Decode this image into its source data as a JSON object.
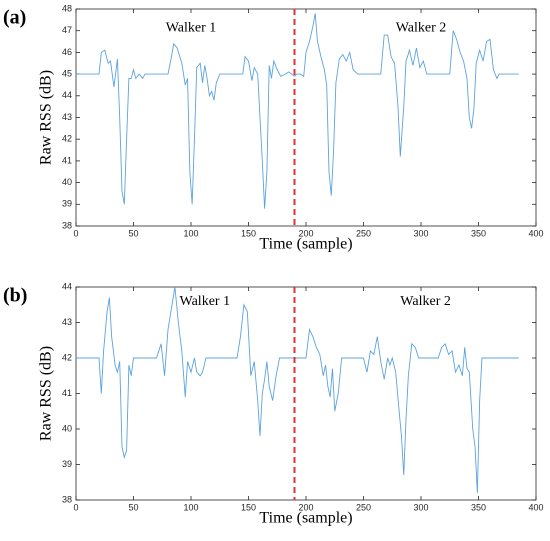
{
  "chart_data": [
    {
      "type": "line",
      "panel_label": "(a)",
      "xlabel": "Time (sample)",
      "ylabel": "Raw RSS (dB)",
      "annotations": [
        "Walker 1",
        "Walker 2"
      ],
      "divider_x": 190,
      "divider_color": "#e03030",
      "xlim": [
        0,
        400
      ],
      "xticks": [
        0,
        50,
        100,
        150,
        200,
        250,
        300,
        350,
        400
      ],
      "ylim": [
        38,
        48
      ],
      "yticks": [
        38,
        39,
        40,
        41,
        42,
        43,
        44,
        45,
        46,
        47,
        48
      ],
      "x": [
        0,
        20,
        22,
        25,
        28,
        30,
        33,
        36,
        38,
        40,
        42,
        44,
        46,
        48,
        50,
        52,
        55,
        58,
        60,
        80,
        83,
        85,
        88,
        92,
        95,
        97,
        99,
        101,
        103,
        105,
        108,
        110,
        112,
        114,
        116,
        118,
        120,
        122,
        125,
        145,
        147,
        150,
        153,
        155,
        158,
        160,
        162,
        164,
        166,
        168,
        170,
        172,
        175,
        178,
        182,
        185,
        190,
        192,
        195,
        198,
        200,
        203,
        206,
        208,
        210,
        213,
        216,
        218,
        220,
        222,
        224,
        226,
        229,
        232,
        235,
        238,
        241,
        245,
        265,
        268,
        271,
        274,
        277,
        280,
        282,
        285,
        287,
        290,
        293,
        296,
        299,
        302,
        305,
        325,
        328,
        331,
        334,
        337,
        340,
        342,
        344,
        346,
        348,
        351,
        354,
        357,
        360,
        363,
        366,
        368,
        385
      ],
      "series": [
        {
          "name": "Raw RSS",
          "color": "#5ba3dd",
          "values": [
            45,
            45,
            46,
            46.1,
            45.5,
            45.6,
            44.4,
            45.7,
            43,
            39.6,
            39,
            42,
            44.8,
            44.8,
            45.2,
            44.8,
            45,
            44.8,
            45,
            45,
            45.8,
            46.4,
            46.2,
            45.5,
            44.5,
            44.8,
            40.5,
            39,
            42,
            45.3,
            45.5,
            44.6,
            45.4,
            44.8,
            44,
            44.2,
            43.8,
            44.6,
            45,
            45,
            45.8,
            45.6,
            44.7,
            45.3,
            45,
            43,
            41,
            38.8,
            40.5,
            45.4,
            44.8,
            45.6,
            45.2,
            44.9,
            45,
            45.1,
            44.9,
            45,
            45,
            44.9,
            46,
            46.5,
            47.2,
            47.8,
            46.5,
            45.8,
            45.2,
            44.5,
            40.5,
            39.4,
            41.5,
            44.6,
            45.7,
            45.9,
            45.6,
            46,
            45.2,
            45,
            45,
            46.8,
            46.8,
            45.8,
            45.5,
            43.5,
            41.2,
            43.5,
            45.6,
            46.1,
            45.4,
            46.2,
            45.3,
            45.6,
            45,
            45,
            47,
            46.6,
            46,
            45.6,
            44.8,
            43,
            42.5,
            43.4,
            45.5,
            46.1,
            45.6,
            46.5,
            46.6,
            45.2,
            44.8,
            45,
            45
          ]
        }
      ]
    },
    {
      "type": "line",
      "panel_label": "(b)",
      "xlabel": "Time (sample)",
      "ylabel": "Raw RSS (dB)",
      "annotations": [
        "Walker 1",
        "Walker 2"
      ],
      "divider_x": 190,
      "divider_color": "#e03030",
      "xlim": [
        0,
        400
      ],
      "xticks": [
        0,
        50,
        100,
        150,
        200,
        250,
        300,
        350,
        400
      ],
      "ylim": [
        38,
        44
      ],
      "yticks": [
        38,
        39,
        40,
        41,
        42,
        43,
        44
      ],
      "x": [
        0,
        20,
        22,
        24,
        27,
        29,
        31,
        34,
        36,
        38,
        40,
        42,
        44,
        46,
        48,
        50,
        70,
        74,
        77,
        80,
        83,
        86,
        89,
        92,
        95,
        97,
        100,
        103,
        105,
        108,
        110,
        113,
        140,
        143,
        146,
        149,
        152,
        155,
        158,
        160,
        162,
        164,
        166,
        168,
        171,
        174,
        177,
        200,
        203,
        206,
        209,
        212,
        215,
        217,
        219,
        221,
        223,
        225,
        228,
        231,
        250,
        253,
        256,
        259,
        262,
        265,
        268,
        271,
        273,
        275,
        278,
        281,
        283,
        285,
        287,
        289,
        292,
        295,
        298,
        315,
        318,
        321,
        324,
        327,
        330,
        333,
        336,
        338,
        340,
        342,
        345,
        347,
        349,
        351,
        353,
        385
      ],
      "series": [
        {
          "name": "Raw RSS",
          "color": "#5ba3dd",
          "values": [
            42,
            42,
            41,
            42.2,
            43.3,
            43.7,
            42.6,
            41.8,
            41.6,
            41.9,
            39.5,
            39.2,
            39.4,
            41.8,
            41.5,
            42,
            42,
            42.4,
            41.5,
            42.8,
            43.4,
            44,
            43,
            42.2,
            40.9,
            41.9,
            41.6,
            42,
            41.6,
            41.5,
            41.6,
            42,
            42,
            42.6,
            43.5,
            43.3,
            41.5,
            41.9,
            40.8,
            39.8,
            41,
            41.4,
            41.9,
            41.2,
            40.8,
            41.5,
            42,
            42,
            42.8,
            42.6,
            42.3,
            42.1,
            41.5,
            41.8,
            41.2,
            40.9,
            41.7,
            40.5,
            41,
            42,
            42,
            41.6,
            42.2,
            42.1,
            42.6,
            41.9,
            41.4,
            42,
            41.8,
            42,
            41.6,
            40.5,
            39.8,
            38.7,
            40.3,
            41.5,
            42.4,
            42.3,
            42,
            42,
            42.3,
            42.4,
            42.1,
            42.2,
            41.6,
            41.8,
            41.5,
            42.3,
            41.7,
            41.6,
            40,
            39.5,
            38.2,
            40.8,
            42,
            42
          ]
        }
      ]
    }
  ]
}
